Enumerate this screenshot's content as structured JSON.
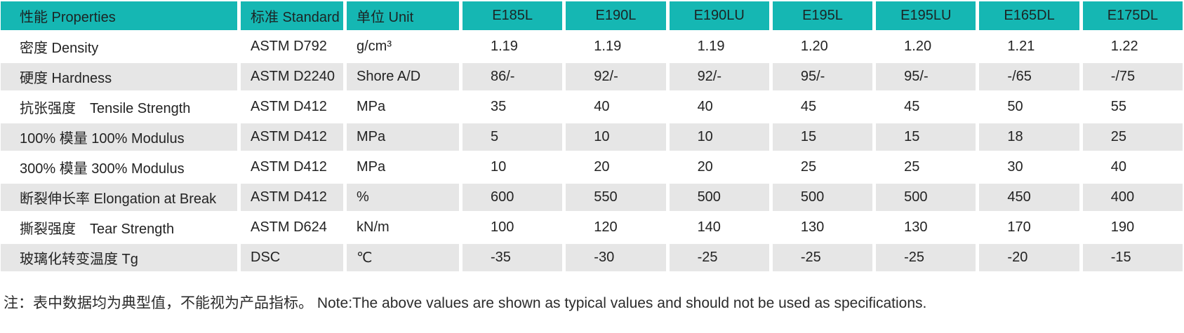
{
  "colors": {
    "header_bg": "#15b7b3",
    "stripe_bg": "#e6e6e6",
    "header_text": "#1c2424",
    "body_text": "#232323"
  },
  "table": {
    "columns": [
      {
        "key": "property",
        "label": "性能 Properties"
      },
      {
        "key": "standard",
        "label": "标准 Standard"
      },
      {
        "key": "unit",
        "label": "单位 Unit"
      },
      {
        "key": "e185l",
        "label": "E185L"
      },
      {
        "key": "e190l",
        "label": "E190L"
      },
      {
        "key": "e190lu",
        "label": "E190LU"
      },
      {
        "key": "e195l",
        "label": "E195L"
      },
      {
        "key": "e195lu",
        "label": "E195LU"
      },
      {
        "key": "e165dl",
        "label": "E165DL"
      },
      {
        "key": "e175dl",
        "label": "E175DL"
      }
    ],
    "rows": [
      {
        "property": "密度 Density",
        "standard": "ASTM D792",
        "unit": "g/cm³",
        "values": [
          "1.19",
          "1.19",
          "1.19",
          "1.20",
          "1.20",
          "1.21",
          "1.22"
        ]
      },
      {
        "property": "硬度 Hardness",
        "standard": "ASTM D2240",
        "unit": "Shore A/D",
        "values": [
          "86/-",
          "92/-",
          "92/-",
          "95/-",
          "95/-",
          "-/65",
          "-/75"
        ]
      },
      {
        "property": "抗张强度　Tensile Strength",
        "standard": "ASTM D412",
        "unit": "MPa",
        "values": [
          "35",
          "40",
          "40",
          "45",
          "45",
          "50",
          "55"
        ]
      },
      {
        "property": "100% 模量 100% Modulus",
        "standard": "ASTM D412",
        "unit": "MPa",
        "values": [
          "5",
          "10",
          "10",
          "15",
          "15",
          "18",
          "25"
        ]
      },
      {
        "property": "300% 模量 300% Modulus",
        "standard": "ASTM D412",
        "unit": "MPa",
        "values": [
          "10",
          "20",
          "20",
          "25",
          "25",
          "30",
          "40"
        ]
      },
      {
        "property": "断裂伸长率 Elongation at Break",
        "standard": "ASTM D412",
        "unit": "%",
        "values": [
          "600",
          "550",
          "500",
          "500",
          "500",
          "450",
          "400"
        ]
      },
      {
        "property": "撕裂强度　Tear Strength",
        "standard": "ASTM D624",
        "unit": "kN/m",
        "values": [
          "100",
          "120",
          "140",
          "130",
          "130",
          "170",
          "190"
        ]
      },
      {
        "property": "玻璃化转变温度 Tg",
        "standard": "DSC",
        "unit": "℃",
        "values": [
          "-35",
          "-30",
          "-25",
          "-25",
          "-25",
          "-20",
          "-15"
        ]
      }
    ]
  },
  "note": "注：表中数据均为典型值，不能视为产品指标。 Note:The above values are shown as typical values and should not be used as specifications."
}
